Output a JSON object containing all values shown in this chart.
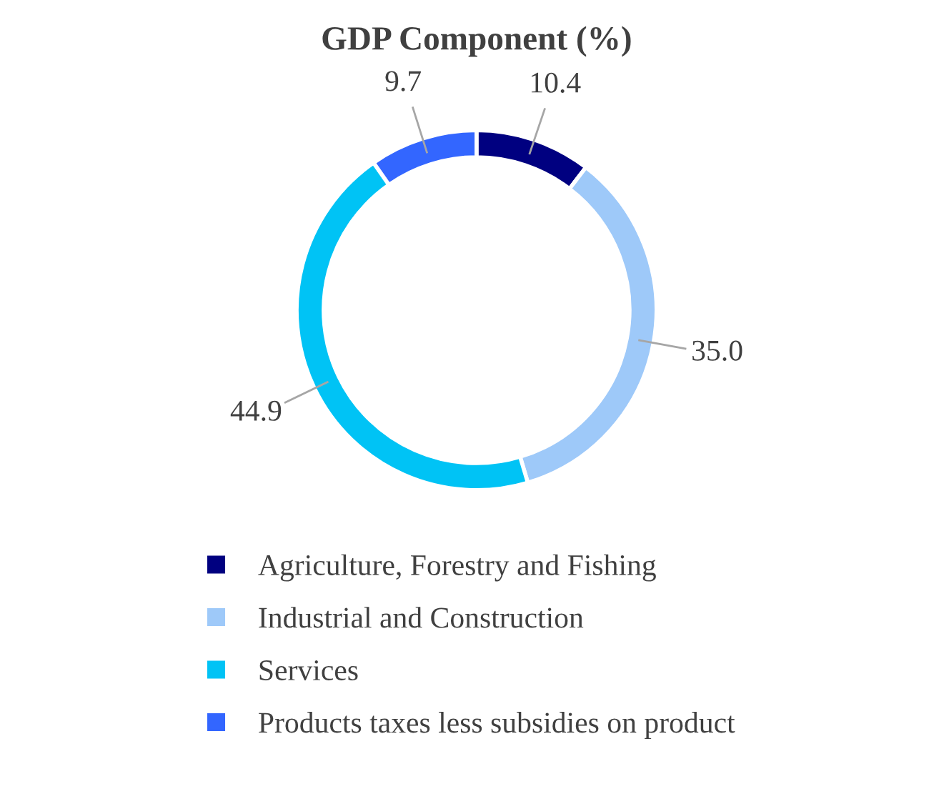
{
  "chart_data": {
    "type": "donut",
    "title": "GDP Component (%)",
    "categories": [
      "Agriculture, Forestry and Fishing",
      "Industrial and Construction",
      "Services",
      "Products taxes less subsidies on product"
    ],
    "values": [
      10.4,
      35.0,
      44.9,
      9.7
    ],
    "value_labels": [
      "10.4",
      "35.0",
      "44.9",
      "9.7"
    ],
    "colors": [
      "#000080",
      "#9ec9f9",
      "#00c3f5",
      "#3366ff"
    ],
    "legend": "bottom"
  }
}
